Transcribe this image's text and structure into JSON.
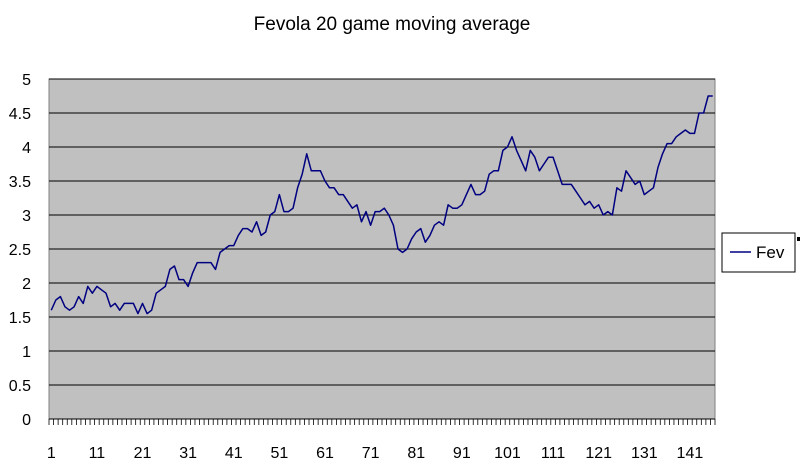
{
  "chart_data": {
    "type": "line",
    "title": "Fevola 20 game moving average",
    "xlabel": "",
    "ylabel": "",
    "ylim": [
      0,
      5
    ],
    "yticks": [
      "0",
      "0.5",
      "1",
      "1.5",
      "2",
      "2.5",
      "3",
      "3.5",
      "4",
      "4.5",
      "5"
    ],
    "xticks": [
      {
        "x": 1,
        "label": "1"
      },
      {
        "x": 11,
        "label": "11"
      },
      {
        "x": 21,
        "label": "21"
      },
      {
        "x": 31,
        "label": "31"
      },
      {
        "x": 41,
        "label": "41"
      },
      {
        "x": 51,
        "label": "51"
      },
      {
        "x": 61,
        "label": "61"
      },
      {
        "x": 71,
        "label": "71"
      },
      {
        "x": 81,
        "label": "81"
      },
      {
        "x": 91,
        "label": "91"
      },
      {
        "x": 101,
        "label": "101"
      },
      {
        "x": 111,
        "label": "111"
      },
      {
        "x": 121,
        "label": "121"
      },
      {
        "x": 131,
        "label": "131"
      },
      {
        "x": 141,
        "label": "141"
      }
    ],
    "xcount": 146,
    "grid": true,
    "legend": "right",
    "colors": {
      "plot_bg": "#c0c0c0",
      "line": "#000080",
      "grid": "#000000"
    },
    "series": [
      {
        "name": "Fev",
        "values": [
          1.6,
          1.75,
          1.8,
          1.65,
          1.6,
          1.65,
          1.8,
          1.7,
          1.95,
          1.85,
          1.95,
          1.9,
          1.85,
          1.65,
          1.7,
          1.6,
          1.7,
          1.7,
          1.7,
          1.55,
          1.7,
          1.55,
          1.6,
          1.85,
          1.9,
          1.95,
          2.2,
          2.25,
          2.05,
          2.05,
          1.95,
          2.15,
          2.3,
          2.3,
          2.3,
          2.3,
          2.2,
          2.45,
          2.5,
          2.55,
          2.55,
          2.7,
          2.8,
          2.8,
          2.75,
          2.9,
          2.7,
          2.75,
          3.0,
          3.05,
          3.3,
          3.05,
          3.05,
          3.1,
          3.4,
          3.6,
          3.9,
          3.65,
          3.65,
          3.65,
          3.5,
          3.4,
          3.4,
          3.3,
          3.3,
          3.2,
          3.1,
          3.15,
          2.9,
          3.05,
          2.85,
          3.05,
          3.05,
          3.1,
          3.0,
          2.85,
          2.5,
          2.45,
          2.5,
          2.65,
          2.75,
          2.8,
          2.6,
          2.7,
          2.85,
          2.9,
          2.85,
          3.15,
          3.1,
          3.1,
          3.15,
          3.3,
          3.45,
          3.3,
          3.3,
          3.35,
          3.6,
          3.65,
          3.65,
          3.95,
          4.0,
          4.15,
          3.95,
          3.8,
          3.65,
          3.95,
          3.85,
          3.65,
          3.75,
          3.85,
          3.85,
          3.65,
          3.45,
          3.45,
          3.45,
          3.35,
          3.25,
          3.15,
          3.2,
          3.1,
          3.15,
          3.0,
          3.05,
          3.0,
          3.4,
          3.35,
          3.65,
          3.55,
          3.45,
          3.5,
          3.3,
          3.35,
          3.4,
          3.7,
          3.9,
          4.05,
          4.05,
          4.15,
          4.2,
          4.25,
          4.2,
          4.2,
          4.5,
          4.5,
          4.75,
          4.75
        ]
      }
    ]
  }
}
